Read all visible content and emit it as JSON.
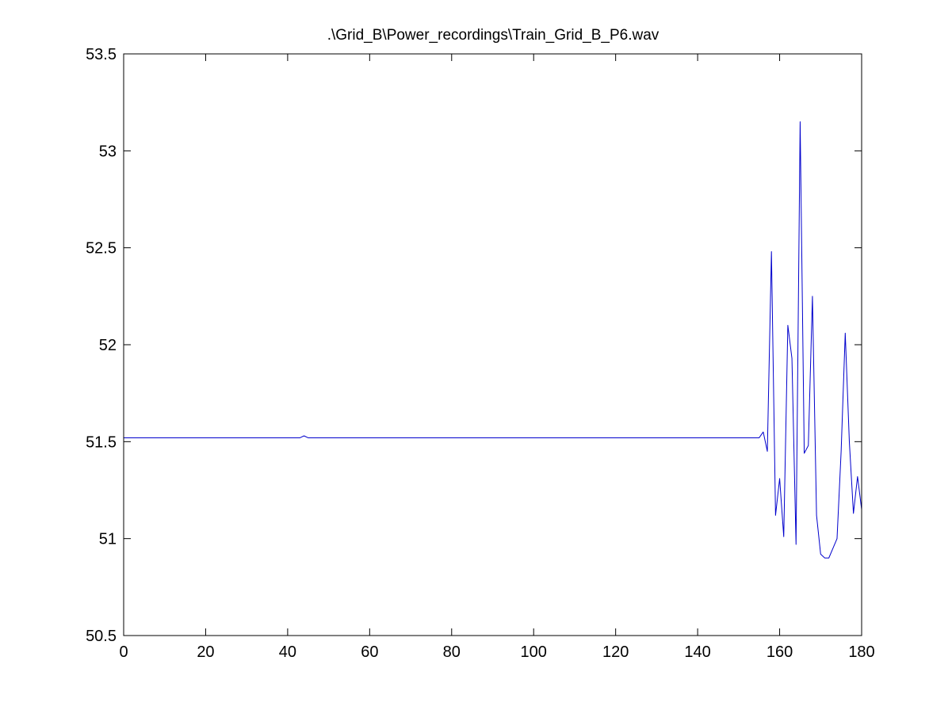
{
  "chart_data": {
    "type": "line",
    "title": ".\\Grid_B\\Power_recordings\\Train_Grid_B_P6.wav",
    "xlabel": "",
    "ylabel": "",
    "xlim": [
      0,
      180
    ],
    "ylim": [
      50.5,
      53.5
    ],
    "xticks": [
      0,
      20,
      40,
      60,
      80,
      100,
      120,
      140,
      160,
      180
    ],
    "xtick_labels": [
      "0",
      "20",
      "40",
      "60",
      "80",
      "100",
      "120",
      "140",
      "160",
      "180"
    ],
    "yticks": [
      50.5,
      51,
      51.5,
      52,
      52.5,
      53,
      53.5
    ],
    "ytick_labels": [
      "50.5",
      "51",
      "51.5",
      "52",
      "52.5",
      "53",
      "53.5"
    ],
    "grid": false,
    "series": [
      {
        "color": "#0000cc",
        "x": [
          0,
          43,
          44,
          45,
          155,
          156,
          157,
          158,
          159,
          160,
          161,
          162,
          163,
          164,
          165,
          166,
          167,
          168,
          169,
          170,
          171,
          172,
          173,
          174,
          175,
          176,
          177,
          178,
          179,
          180
        ],
        "y": [
          51.52,
          51.52,
          51.53,
          51.52,
          51.52,
          51.55,
          51.45,
          52.48,
          51.12,
          51.31,
          51.01,
          52.1,
          51.93,
          50.97,
          53.15,
          51.44,
          51.48,
          52.25,
          51.12,
          50.92,
          50.9,
          50.9,
          50.95,
          51.0,
          51.45,
          52.06,
          51.5,
          51.13,
          51.32,
          51.15
        ]
      }
    ]
  }
}
